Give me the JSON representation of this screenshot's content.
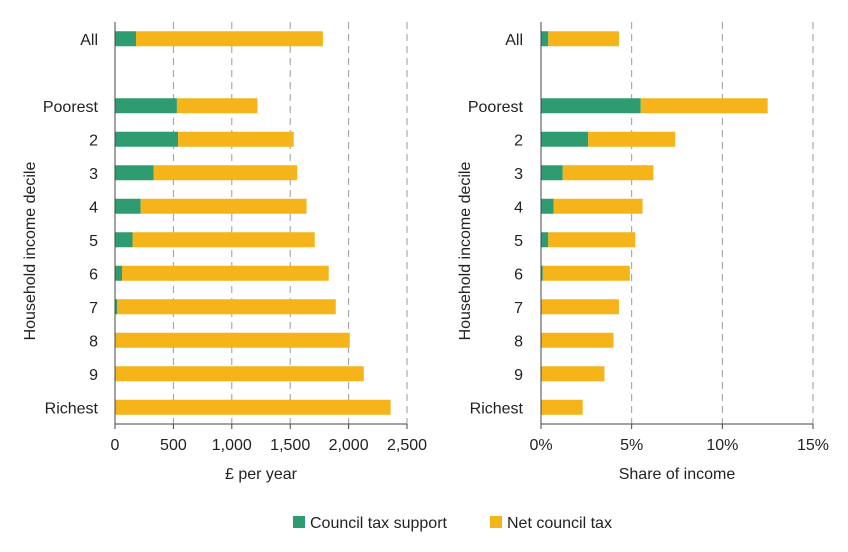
{
  "colors": {
    "support": "#2e9b71",
    "net": "#f4b41a",
    "grid": "#9a9a9a",
    "axis": "#444444"
  },
  "legend": {
    "support_label": "Council tax support",
    "net_label": "Net council tax"
  },
  "chart_data": [
    {
      "type": "bar",
      "orientation": "horizontal",
      "stacked": true,
      "ylabel": "Household income decile",
      "xlabel": "£ per year",
      "xlim": [
        0,
        2500
      ],
      "grid": "vertical dashed",
      "categories": [
        "All",
        "",
        "Poorest",
        "2",
        "3",
        "4",
        "5",
        "6",
        "7",
        "8",
        "9",
        "Richest"
      ],
      "series": [
        {
          "name": "Council tax support",
          "values": [
            180,
            0,
            530,
            540,
            330,
            220,
            150,
            60,
            20,
            0,
            0,
            0
          ]
        },
        {
          "name": "Net council tax",
          "values": [
            1600,
            0,
            690,
            990,
            1230,
            1420,
            1560,
            1770,
            1870,
            2010,
            2130,
            2360
          ]
        }
      ],
      "xticks": [
        0,
        500,
        1000,
        1500,
        2000,
        2500
      ],
      "xtick_labels": [
        "0",
        "500",
        "1,000",
        "1,500",
        "2,000",
        "2,500"
      ]
    },
    {
      "type": "bar",
      "orientation": "horizontal",
      "stacked": true,
      "ylabel": "Household income decile",
      "xlabel": "Share of income",
      "xlim": [
        0,
        15
      ],
      "grid": "vertical dashed",
      "categories": [
        "All",
        "",
        "Poorest",
        "2",
        "3",
        "4",
        "5",
        "6",
        "7",
        "8",
        "9",
        "Richest"
      ],
      "series": [
        {
          "name": "Council tax support",
          "values": [
            0.4,
            0,
            5.5,
            2.6,
            1.2,
            0.7,
            0.4,
            0.1,
            0,
            0,
            0,
            0
          ]
        },
        {
          "name": "Net council tax",
          "values": [
            3.9,
            0,
            7.0,
            4.8,
            5.0,
            4.9,
            4.8,
            4.8,
            4.3,
            4.0,
            3.5,
            2.3
          ]
        }
      ],
      "xticks": [
        0,
        5,
        10,
        15
      ],
      "xtick_labels": [
        "0%",
        "5%",
        "10%",
        "15%"
      ]
    }
  ]
}
